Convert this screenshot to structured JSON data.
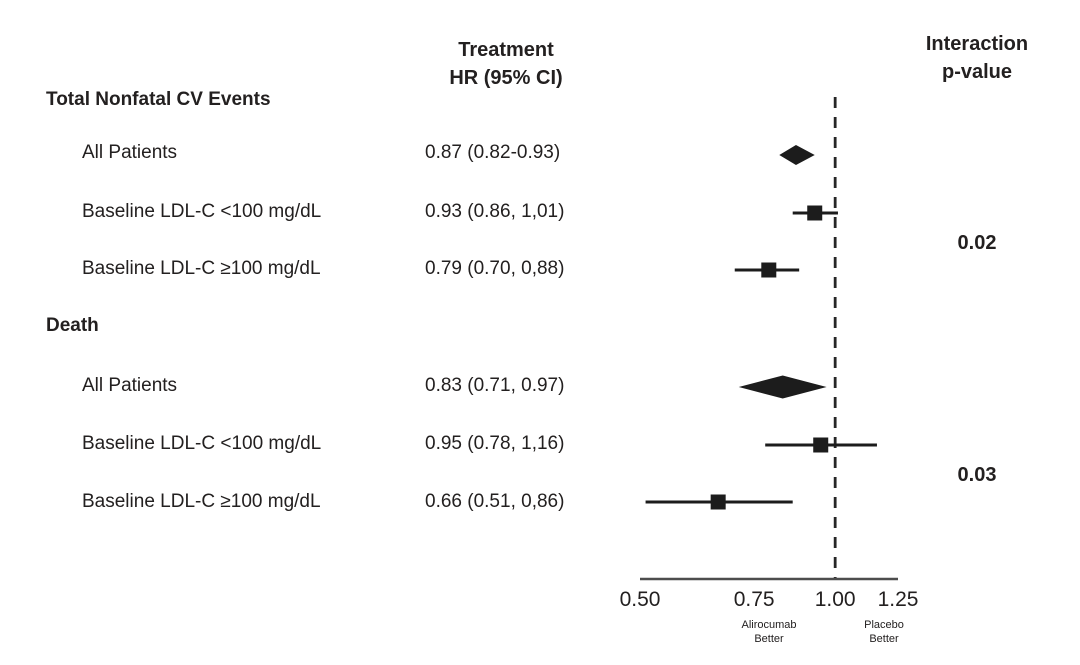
{
  "chart_data": {
    "type": "forest",
    "title": "",
    "columns": {
      "treatment_header": [
        "Treatment",
        "HR (95% CI)"
      ],
      "interaction_header": [
        "Interaction",
        "p-value"
      ]
    },
    "groups": [
      {
        "label": "Total Nonfatal CV Events",
        "interaction_p": "0.02",
        "rows": [
          {
            "label": "All Patients",
            "hr_text": "0.87 (0.82-0.93)",
            "hr": 0.87,
            "ci_low": 0.82,
            "ci_high": 0.93,
            "marker": "diamond"
          },
          {
            "label": "Baseline LDL-C <100 mg/dL",
            "hr_text": "0.93 (0.86, 1,01)",
            "hr": 0.93,
            "ci_low": 0.86,
            "ci_high": 1.01,
            "marker": "square"
          },
          {
            "label": "Baseline LDL-C ≥100 mg/dL",
            "hr_text": "0.79 (0.70, 0,88)",
            "hr": 0.79,
            "ci_low": 0.7,
            "ci_high": 0.88,
            "marker": "square"
          }
        ]
      },
      {
        "label": "Death",
        "interaction_p": "0.03",
        "rows": [
          {
            "label": "All Patients",
            "hr_text": "0.83 (0.71, 0.97)",
            "hr": 0.83,
            "ci_low": 0.71,
            "ci_high": 0.97,
            "marker": "diamond"
          },
          {
            "label": "Baseline LDL-C <100 mg/dL",
            "hr_text": "0.95 (0.78, 1,16)",
            "hr": 0.95,
            "ci_low": 0.78,
            "ci_high": 1.16,
            "marker": "square"
          },
          {
            "label": "Baseline LDL-C ≥100 mg/dL",
            "hr_text": "0.66 (0.51, 0,86)",
            "hr": 0.66,
            "ci_low": 0.51,
            "ci_high": 0.86,
            "marker": "square"
          }
        ]
      }
    ],
    "axis": {
      "scale": "log",
      "min": 0.5,
      "max": 1.25,
      "reference_line": 1.0,
      "ticks": [
        {
          "value": 0.5,
          "label": "0.50"
        },
        {
          "value": 0.75,
          "label": "0.75"
        },
        {
          "value": 1.0,
          "label": "1.00"
        },
        {
          "value": 1.25,
          "label": "1.25"
        }
      ],
      "left_region_label": [
        "Alirocumab",
        "Better"
      ],
      "right_region_label": [
        "Placebo",
        "Better"
      ]
    },
    "colors": {
      "text": "#232020",
      "marker": "#1c1c1c",
      "axis_line": "#4d4d4d",
      "reference_line": "#262626"
    }
  }
}
